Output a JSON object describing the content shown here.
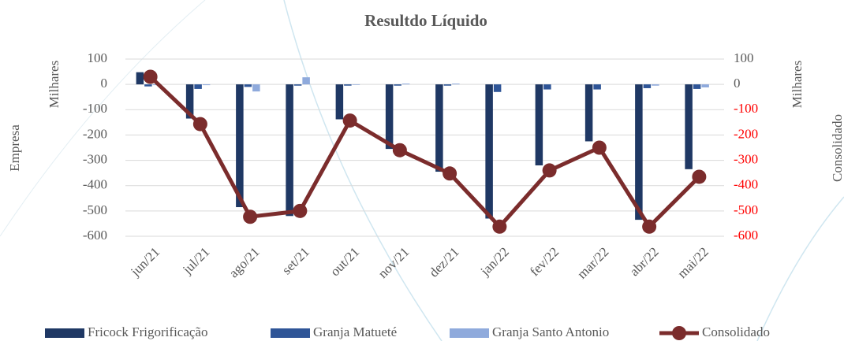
{
  "chart_data": {
    "type": "bar",
    "title": "Resultdo Líquido",
    "y_label": "Empresa",
    "y_unit": "Milhares",
    "y2_label": "Consolidado",
    "y2_unit": "Milhares",
    "categories": [
      "jun/21",
      "jul/21",
      "ago/21",
      "set/21",
      "out/21",
      "nov/21",
      "dez/21",
      "jan/22",
      "fev/22",
      "mar/22",
      "abr/22",
      "mai/22"
    ],
    "series": [
      {
        "name": "Fricock Frigorificação",
        "type": "bar",
        "color": "#1f3864",
        "values": [
          48,
          -135,
          -485,
          -520,
          -138,
          -255,
          -345,
          -530,
          -320,
          -225,
          -535,
          -335
        ]
      },
      {
        "name": "Granja Matueté",
        "type": "bar",
        "color": "#2f5597",
        "values": [
          -8,
          -18,
          -10,
          -5,
          -5,
          -5,
          -5,
          -30,
          -20,
          -20,
          -15,
          -18
        ]
      },
      {
        "name": "Granja Santo Antonio",
        "type": "bar",
        "color": "#8faadc",
        "values": [
          -3,
          -3,
          -28,
          28,
          -2,
          3,
          3,
          0,
          0,
          0,
          -5,
          -12
        ]
      },
      {
        "name": "Consolidado",
        "type": "line",
        "axis": "y2",
        "color": "#7b2c2c",
        "values": [
          30,
          -157,
          -523,
          -500,
          -143,
          -260,
          -352,
          -562,
          -340,
          -250,
          -562,
          -365
        ]
      }
    ],
    "ylim": [
      -600,
      100
    ],
    "yticks": [
      100,
      0,
      -100,
      -200,
      -300,
      -400,
      -500,
      -600
    ],
    "y2lim": [
      -600,
      100
    ],
    "y2ticks": [
      100,
      0,
      -100,
      -200,
      -300,
      -400,
      -500,
      -600
    ],
    "y2tick_negative_color": "#ff0000",
    "grid": true,
    "legend": "bottom"
  }
}
